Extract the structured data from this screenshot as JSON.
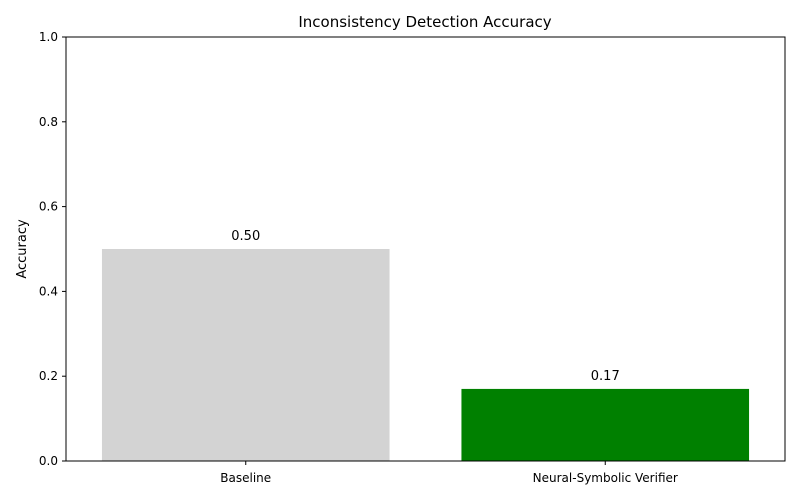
{
  "chart_data": {
    "type": "bar",
    "title": "Inconsistency Detection Accuracy",
    "xlabel": "",
    "ylabel": "Accuracy",
    "categories": [
      "Baseline",
      "Neural-Symbolic Verifier"
    ],
    "values": [
      0.5,
      0.17
    ],
    "data_labels": [
      "0.50",
      "0.17"
    ],
    "colors": [
      "#d3d3d3",
      "#008000"
    ],
    "ylim": [
      0,
      1.0
    ],
    "yticks": [
      0.0,
      0.2,
      0.4,
      0.6,
      0.8,
      1.0
    ],
    "ytick_labels": [
      "0.0",
      "0.2",
      "0.4",
      "0.6",
      "0.8",
      "1.0"
    ],
    "grid": false,
    "legend": "none"
  }
}
